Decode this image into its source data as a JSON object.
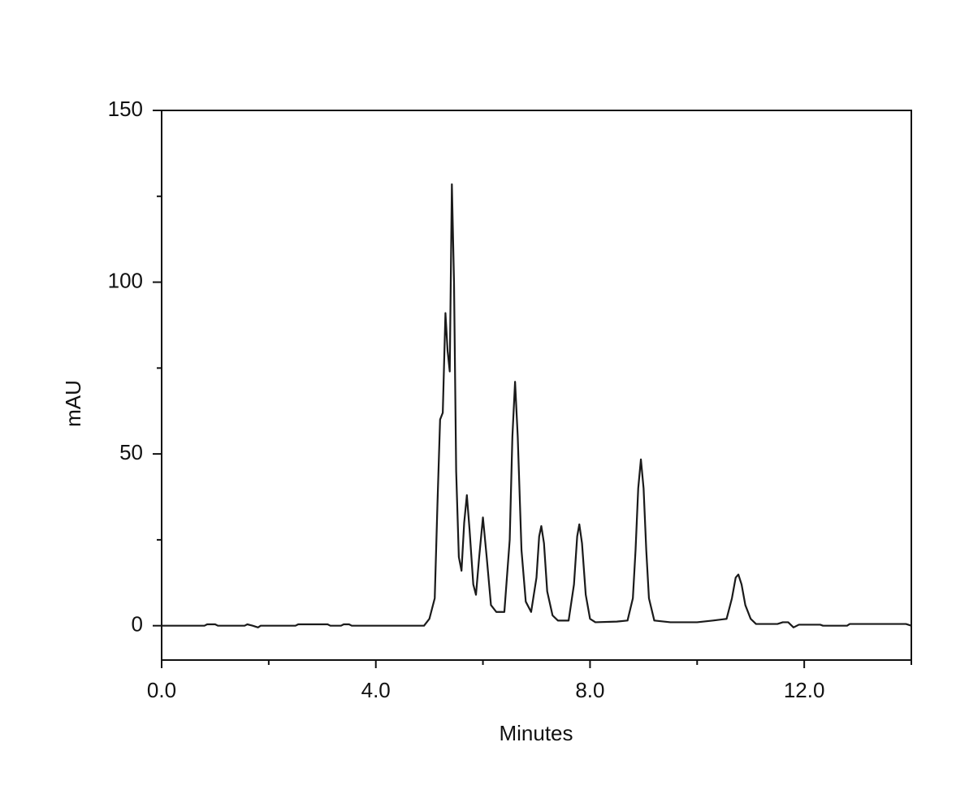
{
  "chart_data": {
    "type": "line",
    "xlabel": "Minutes",
    "ylabel": "mAU",
    "xlim": [
      0,
      14
    ],
    "ylim": [
      -10,
      150
    ],
    "xticks": [
      {
        "value": 0,
        "label": "0.0"
      },
      {
        "value": 4,
        "label": "4.0"
      },
      {
        "value": 8,
        "label": "8.0"
      },
      {
        "value": 12,
        "label": "12.0"
      }
    ],
    "xminor": [
      2,
      6,
      10,
      14
    ],
    "yticks": [
      0,
      50,
      100,
      150
    ],
    "yminor": [
      25,
      75,
      125
    ],
    "series": [
      {
        "color": "#1a1a1a",
        "x": [
          0,
          0.8,
          0.85,
          1.0,
          1.05,
          1.55,
          1.6,
          1.7,
          1.8,
          1.85,
          2.5,
          2.55,
          3.1,
          3.15,
          3.35,
          3.4,
          3.5,
          3.55,
          4.0,
          4.9,
          5.0,
          5.1,
          5.15,
          5.2,
          5.25,
          5.3,
          5.34,
          5.38,
          5.42,
          5.46,
          5.5,
          5.55,
          5.6,
          5.65,
          5.7,
          5.75,
          5.82,
          5.87,
          5.93,
          6.0,
          6.07,
          6.15,
          6.25,
          6.4,
          6.5,
          6.55,
          6.6,
          6.65,
          6.72,
          6.8,
          6.9,
          7.0,
          7.05,
          7.09,
          7.14,
          7.2,
          7.3,
          7.4,
          7.6,
          7.7,
          7.76,
          7.8,
          7.85,
          7.92,
          8.0,
          8.1,
          8.5,
          8.7,
          8.8,
          8.85,
          8.9,
          8.95,
          9.0,
          9.05,
          9.1,
          9.2,
          9.5,
          10.0,
          10.3,
          10.55,
          10.65,
          10.72,
          10.77,
          10.83,
          10.9,
          11.0,
          11.1,
          11.5,
          11.6,
          11.7,
          11.8,
          11.9,
          12.3,
          12.35,
          12.8,
          12.85,
          13.9,
          14.0
        ],
        "values": [
          0,
          0,
          0.4,
          0.4,
          0,
          0,
          0.4,
          0,
          -0.5,
          0,
          0,
          0.4,
          0.4,
          0,
          0,
          0.4,
          0.4,
          0,
          0,
          0,
          2,
          8,
          35,
          60,
          62,
          91,
          80,
          74,
          128.5,
          100,
          45,
          20,
          16,
          30,
          38,
          28,
          12,
          9,
          20,
          31.5,
          20,
          6,
          4,
          4,
          25,
          55,
          71,
          55,
          22,
          7,
          4,
          14,
          26,
          29,
          24,
          10,
          3,
          1.5,
          1.5,
          12,
          26,
          29.5,
          24,
          9,
          2,
          1,
          1.2,
          1.5,
          8,
          22,
          40,
          48.4,
          40,
          22,
          8,
          1.5,
          1,
          1,
          1.5,
          2,
          8,
          14,
          14.9,
          12,
          6,
          2,
          0.5,
          0.5,
          1,
          1,
          -0.5,
          0.3,
          0.3,
          0,
          0,
          0.5,
          0.5,
          0
        ]
      }
    ]
  }
}
